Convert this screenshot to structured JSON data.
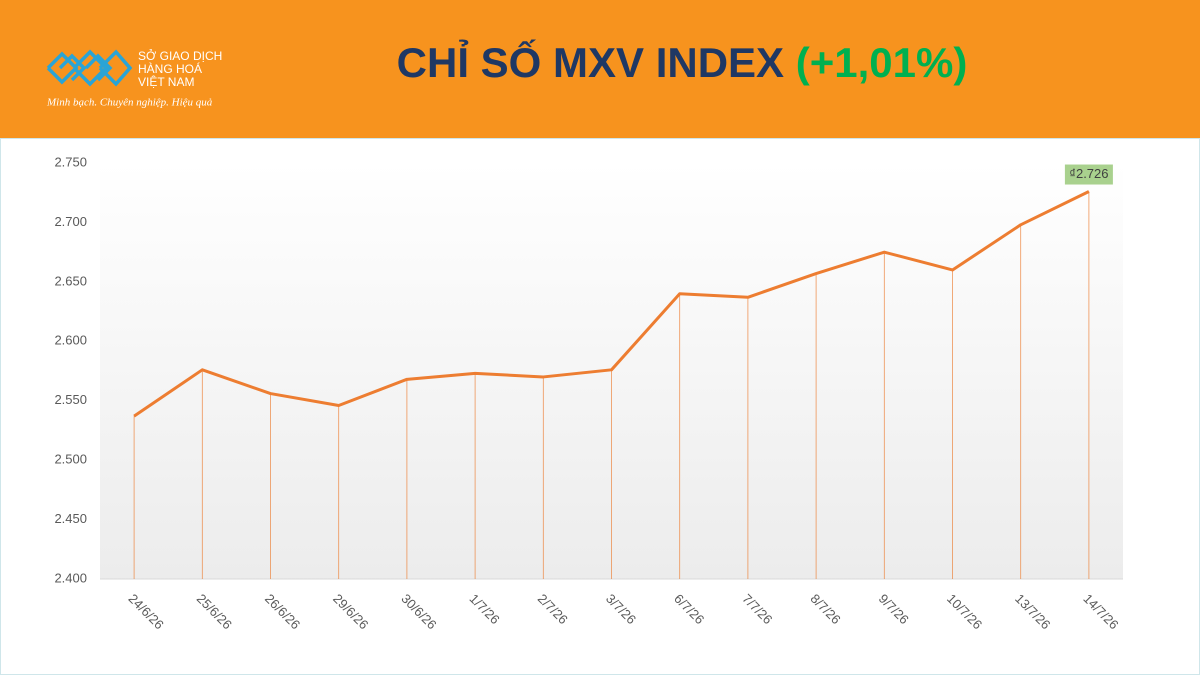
{
  "logo": {
    "line1": "SỞ GIAO DỊCH",
    "line2": "HÀNG HOÁ",
    "line3": "VIỆT NAM",
    "slogan": "Minh bạch. Chuyên nghiệp. Hiệu quả"
  },
  "chart_data": {
    "type": "line",
    "title": "CHỈ SỐ MXV INDEX",
    "subtitle": "(+1,01%)",
    "categories": [
      "24/6/26",
      "25/6/26",
      "26/6/26",
      "29/6/26",
      "30/6/26",
      "1/7/26",
      "2/7/26",
      "3/7/26",
      "6/7/26",
      "7/7/26",
      "8/7/26",
      "9/7/26",
      "10/7/26",
      "13/7/26",
      "14/7/26"
    ],
    "values": [
      2537,
      2576,
      2556,
      2546,
      2568,
      2573,
      2570,
      2576,
      2640,
      2637,
      2657,
      2675,
      2660,
      2698,
      2726
    ],
    "value_labels": [
      null,
      null,
      null,
      null,
      null,
      null,
      null,
      null,
      null,
      null,
      null,
      null,
      null,
      null,
      "₫2.726"
    ],
    "color": "#ed7d31",
    "drop_lines": true,
    "ylim": [
      2400,
      2750
    ],
    "yticks": [
      {
        "value": 2400,
        "label": "2.400"
      },
      {
        "value": 2450,
        "label": "2.450"
      },
      {
        "value": 2500,
        "label": "2.500"
      },
      {
        "value": 2550,
        "label": "2.550"
      },
      {
        "value": 2600,
        "label": "2.600"
      },
      {
        "value": 2650,
        "label": "2.650"
      },
      {
        "value": 2700,
        "label": "2.700"
      },
      {
        "value": 2750,
        "label": "2.750"
      }
    ]
  }
}
